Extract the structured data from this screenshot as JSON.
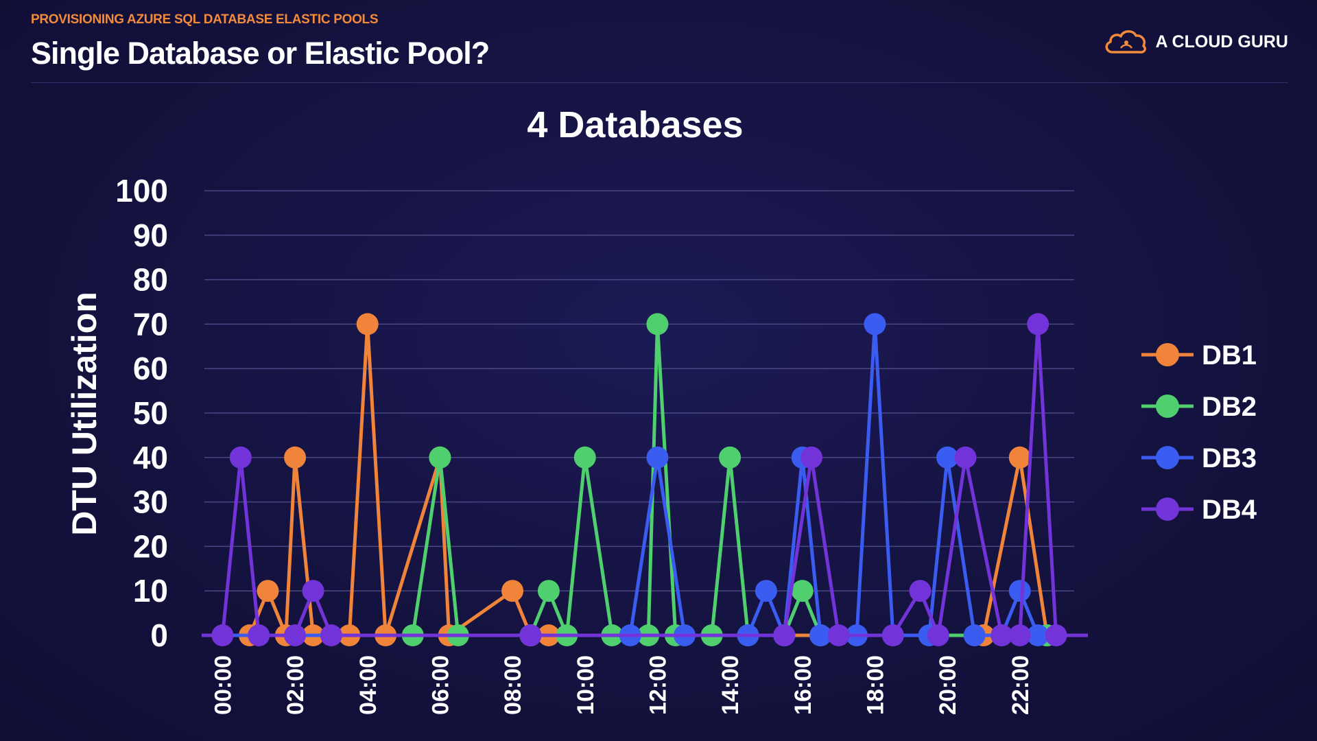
{
  "header": {
    "kicker": "PROVISIONING AZURE SQL DATABASE ELASTIC POOLS",
    "title": "Single Database or Elastic Pool?"
  },
  "brand": {
    "name": "A CLOUD GURU",
    "icon": "cloud-logo-icon",
    "color": "#f28a3c"
  },
  "chart_data": {
    "type": "line",
    "title": "4 Databases",
    "xlabel": "",
    "ylabel": "DTU Utilization",
    "ylim": [
      0,
      100
    ],
    "yticks": [
      0,
      10,
      20,
      30,
      40,
      50,
      60,
      70,
      80,
      90,
      100
    ],
    "xlim": [
      -0.5,
      23.5
    ],
    "xticks": [
      0,
      2,
      4,
      6,
      8,
      10,
      12,
      14,
      16,
      18,
      20,
      22
    ],
    "xtick_labels": [
      "00:00",
      "02:00",
      "04:00",
      "06:00",
      "08:00",
      "10:00",
      "12:00",
      "14:00",
      "16:00",
      "18:00",
      "20:00",
      "22:00"
    ],
    "grid": true,
    "legend": "right",
    "series": [
      {
        "name": "DB1",
        "color": "#f0843a",
        "x": [
          0.75,
          1.25,
          1.75,
          2.0,
          2.5,
          3.5,
          4.0,
          4.5,
          6.0,
          6.25,
          8.0,
          8.5,
          9.0,
          21.0,
          22.0,
          22.75
        ],
        "y": [
          0,
          10,
          0,
          40,
          0,
          0,
          70,
          0,
          40,
          0,
          10,
          0,
          0,
          0,
          40,
          0
        ]
      },
      {
        "name": "DB2",
        "color": "#4fcf6e",
        "x": [
          5.25,
          6.0,
          6.5,
          8.5,
          9.0,
          9.5,
          10.0,
          10.75,
          11.75,
          12.0,
          12.5,
          13.5,
          14.0,
          14.5,
          15.5,
          16.0,
          16.5,
          22.75
        ],
        "y": [
          0,
          40,
          0,
          0,
          10,
          0,
          40,
          0,
          0,
          70,
          0,
          0,
          40,
          0,
          0,
          10,
          0,
          0
        ]
      },
      {
        "name": "DB3",
        "color": "#3b5cf0",
        "x": [
          11.25,
          12.0,
          12.75,
          14.5,
          15.0,
          15.5,
          16.0,
          16.5,
          17.5,
          18.0,
          18.5,
          19.5,
          20.0,
          20.75,
          21.5,
          22.0,
          22.5
        ],
        "y": [
          0,
          40,
          0,
          0,
          10,
          0,
          40,
          0,
          0,
          70,
          0,
          0,
          40,
          0,
          0,
          10,
          0
        ]
      },
      {
        "name": "DB4",
        "color": "#7233d8",
        "x": [
          0.0,
          0.5,
          1.0,
          2.0,
          2.5,
          3.0,
          8.5,
          15.5,
          16.25,
          17.0,
          18.5,
          19.25,
          19.75,
          20.5,
          21.5,
          22.0,
          22.5,
          23.0
        ],
        "y": [
          0,
          40,
          0,
          0,
          10,
          0,
          0,
          0,
          40,
          0,
          0,
          10,
          0,
          40,
          0,
          0,
          70,
          0
        ]
      }
    ]
  }
}
